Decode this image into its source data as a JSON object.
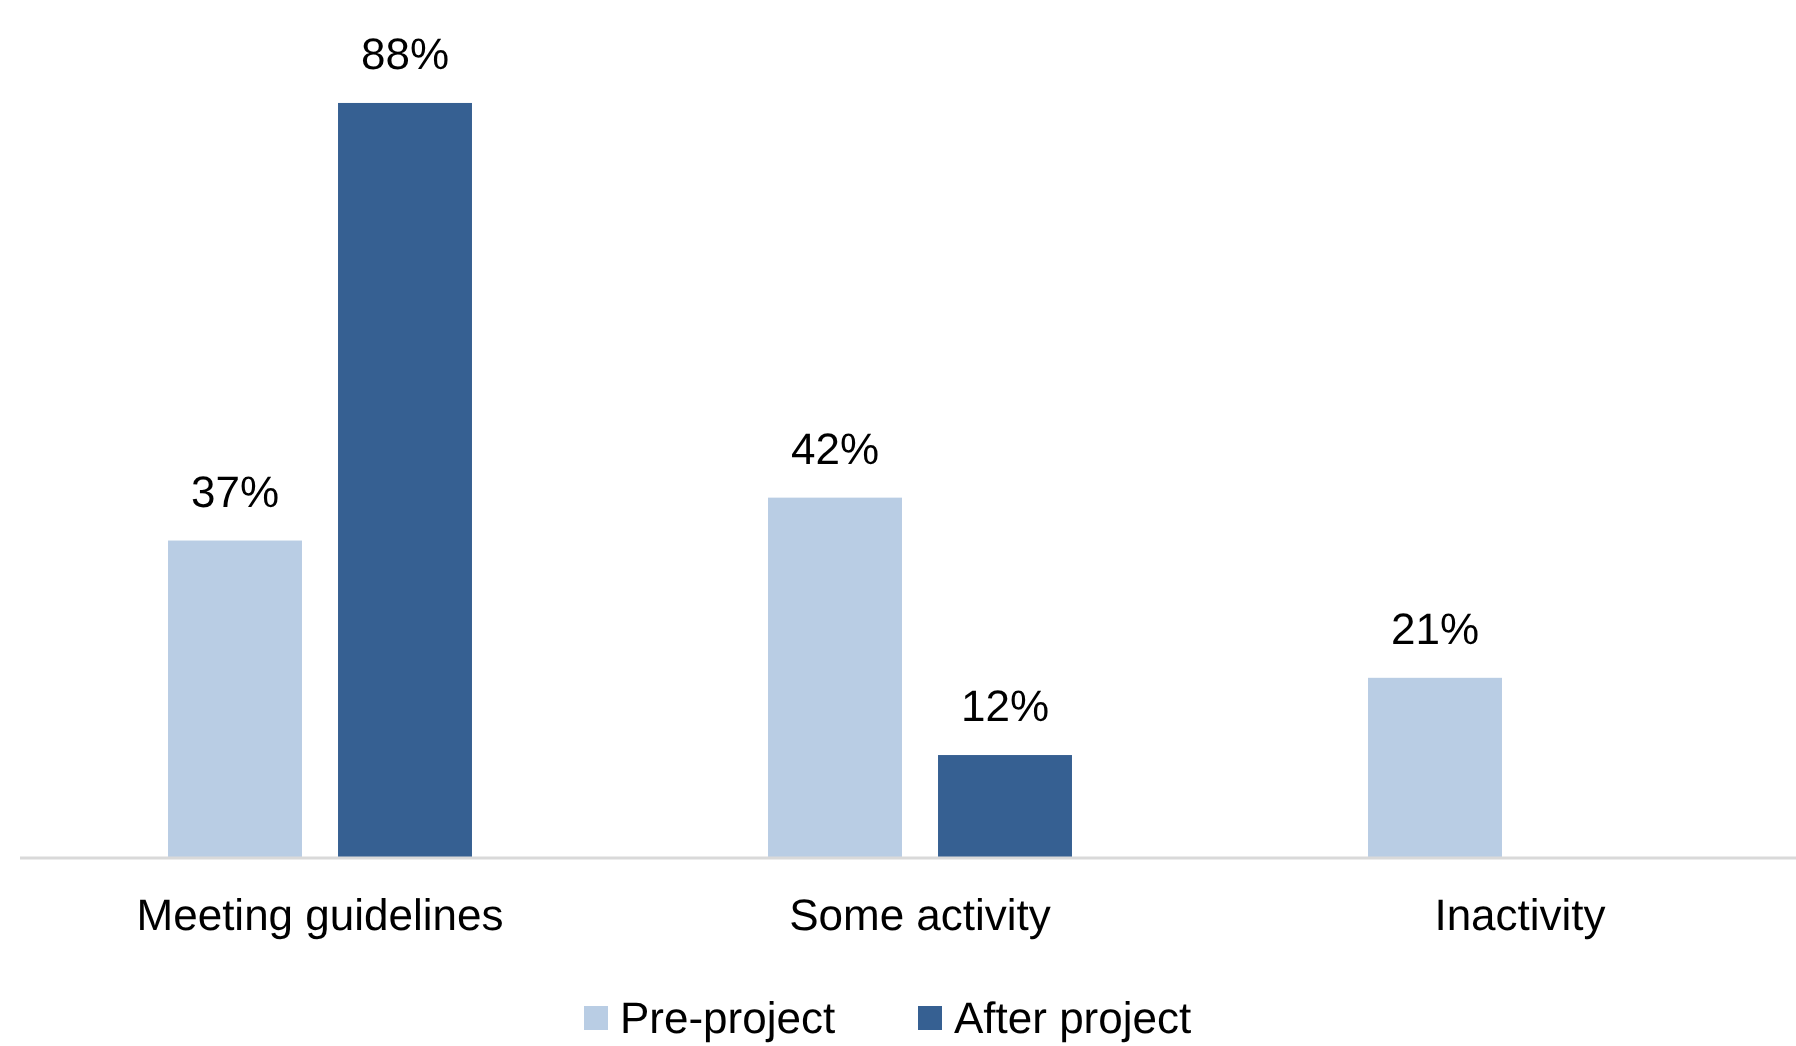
{
  "chart_data": {
    "type": "bar",
    "categories": [
      "Meeting guidelines",
      "Some activity",
      "Inactivity"
    ],
    "series": [
      {
        "name": "Pre-project",
        "color": "#b9cde4",
        "values": [
          37,
          42,
          21
        ],
        "value_labels": [
          "37%",
          "42%",
          "21%"
        ]
      },
      {
        "name": "After project",
        "color": "#366092",
        "values": [
          88,
          12,
          null
        ],
        "value_labels": [
          "88%",
          "12%",
          null
        ]
      }
    ],
    "ylim": [
      0,
      100
    ],
    "tick_labels": "x",
    "legend": "bottom"
  }
}
